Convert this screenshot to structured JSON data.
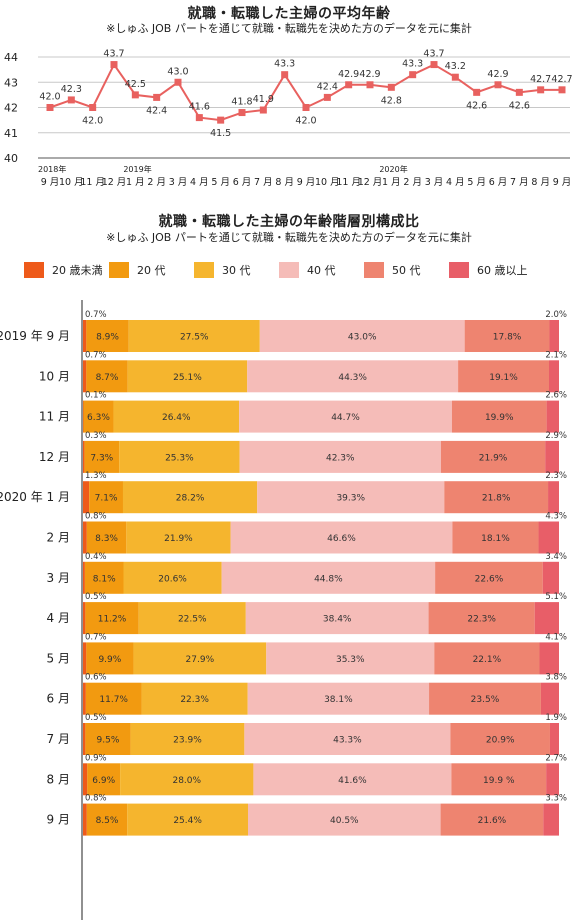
{
  "line_chart_title": "就職・転職した主婦の平均年齢",
  "line_chart_subtitle": "※しゅふ JOB パートを通じて就職・転職先を決めた方のデータを元に集計",
  "bar_chart_title": "就職・転職した主婦の年齢階層別構成比",
  "bar_chart_subtitle": "※しゅふ JOB パートを通じて就職・転職先を決めた方のデータを元に集計",
  "colors": {
    "line": "#e8615f",
    "grid": "#c8c8c8",
    "seg": [
      "#ee5a1a",
      "#f29a10",
      "#f5b52e",
      "#f5bcb8",
      "#ee8470",
      "#e85e68"
    ]
  },
  "chart_data": [
    {
      "type": "line",
      "title": "就職・転職した主婦の平均年齢",
      "subtitle": "※しゅふ JOB パートを通じて就職・転職先を決めた方のデータを元に集計",
      "ylim": [
        40,
        44
      ],
      "yticks": [
        "40",
        "41",
        "42",
        "43",
        "44"
      ],
      "grid": true,
      "year_labels": [
        {
          "index": 0,
          "label": "2018年"
        },
        {
          "index": 4,
          "label": "2019年"
        },
        {
          "index": 16,
          "label": "2020年"
        }
      ],
      "x": [
        "9 月",
        "10 月",
        "11 月",
        "12 月",
        "1 月",
        "2 月",
        "3 月",
        "4 月",
        "5 月",
        "6 月",
        "7 月",
        "8 月",
        "9 月",
        "10 月",
        "11 月",
        "12 月",
        "1 月",
        "2 月",
        "3 月",
        "4 月",
        "5 月",
        "6 月",
        "7 月",
        "8 月",
        "9 月"
      ],
      "values": [
        42.0,
        42.3,
        42.0,
        43.7,
        42.5,
        42.4,
        43.0,
        41.6,
        41.5,
        41.8,
        41.9,
        43.3,
        42.0,
        42.4,
        42.9,
        42.9,
        42.8,
        43.3,
        43.7,
        43.2,
        42.6,
        42.9,
        42.6,
        42.7,
        42.7
      ],
      "value_labels": [
        "42.0",
        "42.3",
        "42.0",
        "43.7",
        "42.5",
        "42.4",
        "43.0",
        "41.6",
        "41.5",
        "41.8",
        "41.9",
        "43.3",
        "42.0",
        "42.4",
        "42.9",
        "42.9",
        "42.8",
        "43.3",
        "43.7",
        "43.2",
        "42.6",
        "42.9",
        "42.6",
        "42.7",
        "42.7"
      ]
    },
    {
      "type": "bar",
      "stacked": true,
      "orientation": "horizontal",
      "title": "就職・転職した主婦の年齢階層別構成比",
      "subtitle": "※しゅふ JOB パートを通じて就職・転職先を決めた方のデータを元に集計",
      "legend_position": "top",
      "categories": [
        "2019 年 9 月",
        "10 月",
        "11 月",
        "12 月",
        "2020 年 1 月",
        "2 月",
        "3 月",
        "4 月",
        "5 月",
        "6 月",
        "7 月",
        "8 月",
        "9 月"
      ],
      "series": [
        {
          "name": "20 歳未満",
          "values": [
            0.7,
            0.7,
            0.1,
            0.3,
            1.3,
            0.8,
            0.4,
            0.5,
            0.7,
            0.6,
            0.5,
            0.9,
            0.8
          ],
          "labels": [
            "0.7%",
            "0.7%",
            "0.1%",
            "0.3%",
            "1.3%",
            "0.8%",
            "0.4%",
            "0.5%",
            "0.7%",
            "0.6%",
            "0.5%",
            "0.9%",
            "0.8%"
          ]
        },
        {
          "name": "20 代",
          "values": [
            8.9,
            8.7,
            6.3,
            7.3,
            7.1,
            8.3,
            8.1,
            11.2,
            9.9,
            11.7,
            9.5,
            6.9,
            8.5
          ],
          "labels": [
            "8.9%",
            "8.7%",
            "6.3%",
            "7.3%",
            "7.1%",
            "8.3%",
            "8.1%",
            "11.2%",
            "9.9%",
            "11.7%",
            "9.5%",
            "6.9%",
            "8.5%"
          ]
        },
        {
          "name": "30 代",
          "values": [
            27.5,
            25.1,
            26.4,
            25.3,
            28.2,
            21.9,
            20.6,
            22.5,
            27.9,
            22.3,
            23.9,
            28.0,
            25.4
          ],
          "labels": [
            "27.5%",
            "25.1%",
            "26.4%",
            "25.3%",
            "28.2%",
            "21.9%",
            "20.6%",
            "22.5%",
            "27.9%",
            "22.3%",
            "23.9%",
            "28.0%",
            "25.4%"
          ]
        },
        {
          "name": "40 代",
          "values": [
            43.0,
            44.3,
            44.7,
            42.3,
            39.3,
            46.6,
            44.8,
            38.4,
            35.3,
            38.1,
            43.3,
            41.6,
            40.5
          ],
          "labels": [
            "43.0%",
            "44.3%",
            "44.7%",
            "42.3%",
            "39.3%",
            "46.6%",
            "44.8%",
            "38.4%",
            "35.3%",
            "38.1%",
            "43.3%",
            "41.6%",
            "40.5%"
          ]
        },
        {
          "name": "50 代",
          "values": [
            17.8,
            19.1,
            19.9,
            21.9,
            21.8,
            18.1,
            22.6,
            22.3,
            22.1,
            23.5,
            20.9,
            19.9,
            21.6
          ],
          "labels": [
            "17.8%",
            "19.1%",
            "19.9%",
            "21.9%",
            "21.8%",
            "18.1%",
            "22.6%",
            "22.3%",
            "22.1%",
            "23.5%",
            "20.9%",
            "19.9 %",
            "21.6%"
          ]
        },
        {
          "name": "60 歳以上",
          "values": [
            2.0,
            2.1,
            2.6,
            2.9,
            2.3,
            4.3,
            3.4,
            5.1,
            4.1,
            3.8,
            1.9,
            2.7,
            3.3
          ],
          "labels": [
            "2.0%",
            "2.1%",
            "2.6%",
            "2.9%",
            "2.3%",
            "4.3%",
            "3.4%",
            "5.1%",
            "4.1%",
            "3.8%",
            "1.9%",
            "2.7%",
            "3.3%"
          ]
        }
      ]
    }
  ]
}
